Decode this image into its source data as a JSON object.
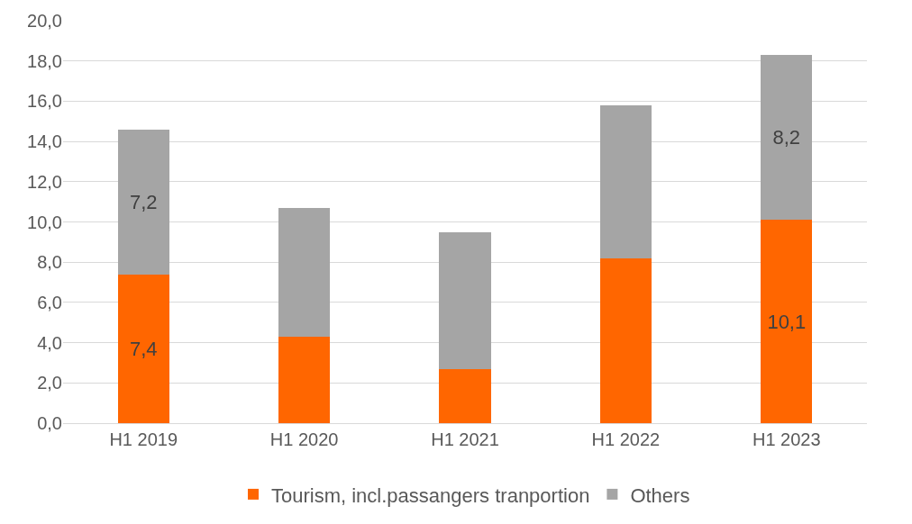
{
  "chart_data": {
    "type": "bar",
    "stacked": true,
    "categories": [
      "H1 2019",
      "H1 2020",
      "H1 2021",
      "H1 2022",
      "H1 2023"
    ],
    "series": [
      {
        "name": "Tourism, incl.passangers tranportion",
        "color": "#ff6600",
        "values": [
          7.4,
          4.3,
          2.7,
          8.2,
          10.1
        ],
        "value_labels": [
          "7,4",
          null,
          null,
          null,
          "10,1"
        ]
      },
      {
        "name": "Others",
        "color": "#a5a5a5",
        "values": [
          7.2,
          6.4,
          6.8,
          7.6,
          8.2
        ],
        "value_labels": [
          "7,2",
          null,
          null,
          null,
          "8,2"
        ]
      }
    ],
    "ylim": [
      0,
      20
    ],
    "yticks": [
      {
        "value": 0,
        "label": "0,0"
      },
      {
        "value": 2,
        "label": "2,0"
      },
      {
        "value": 4,
        "label": "4,0"
      },
      {
        "value": 6,
        "label": "6,0"
      },
      {
        "value": 8,
        "label": "8,0"
      },
      {
        "value": 10,
        "label": "10,0"
      },
      {
        "value": 12,
        "label": "12,0"
      },
      {
        "value": 14,
        "label": "14,0"
      },
      {
        "value": 16,
        "label": "16,0"
      },
      {
        "value": 18,
        "label": "18,0"
      },
      {
        "value": 20,
        "label": "20,0"
      }
    ],
    "grid": "y",
    "legend": "bottom"
  }
}
